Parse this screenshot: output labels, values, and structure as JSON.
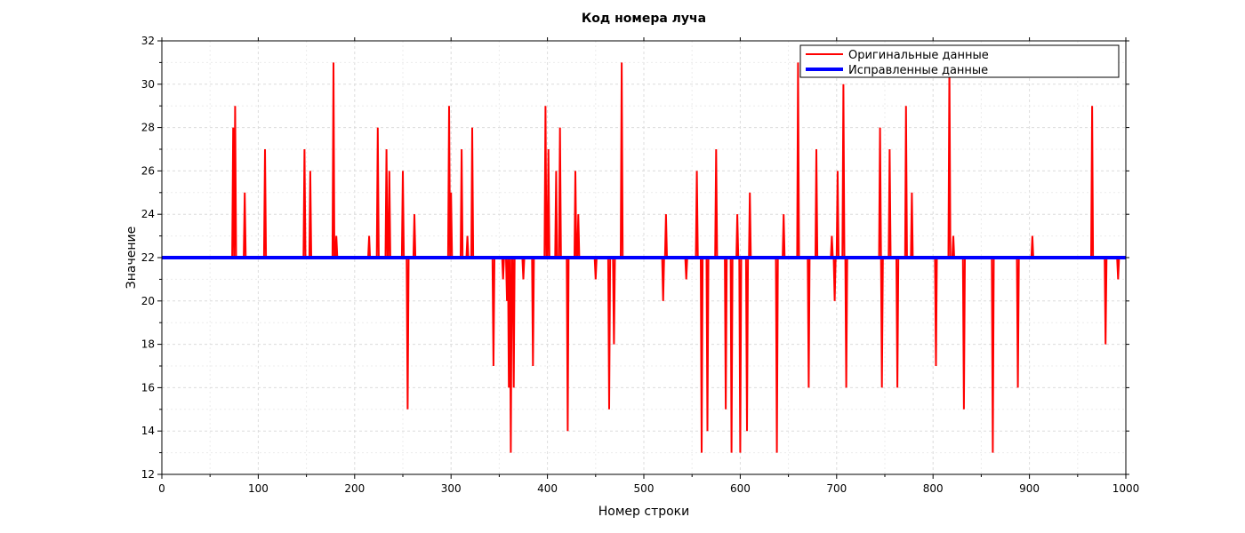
{
  "chart_data": {
    "type": "line",
    "title": "Код номера луча",
    "xlabel": "Номер строки",
    "ylabel": "Значение",
    "xlim": [
      0,
      1000
    ],
    "ylim": [
      12,
      32
    ],
    "xticks": [
      0,
      100,
      200,
      300,
      400,
      500,
      600,
      700,
      800,
      900,
      1000
    ],
    "yticks": [
      12,
      14,
      16,
      18,
      20,
      22,
      24,
      26,
      28,
      30,
      32
    ],
    "grid": true,
    "legend_position": "top-right",
    "series": [
      {
        "name": "Оригинальные данные",
        "color": "#ff0000",
        "baseline": 22,
        "spikes": [
          [
            74,
            28
          ],
          [
            76,
            29
          ],
          [
            86,
            25
          ],
          [
            107,
            27
          ],
          [
            148,
            27
          ],
          [
            154,
            26
          ],
          [
            178,
            31
          ],
          [
            181,
            23
          ],
          [
            215,
            23
          ],
          [
            224,
            28
          ],
          [
            233,
            27
          ],
          [
            236,
            26
          ],
          [
            250,
            26
          ],
          [
            255,
            15
          ],
          [
            262,
            24
          ],
          [
            298,
            29
          ],
          [
            300,
            25
          ],
          [
            311,
            27
          ],
          [
            317,
            23
          ],
          [
            322,
            28
          ],
          [
            344,
            17
          ],
          [
            354,
            21
          ],
          [
            358,
            20
          ],
          [
            360,
            16
          ],
          [
            362,
            13
          ],
          [
            365,
            16
          ],
          [
            375,
            21
          ],
          [
            385,
            17
          ],
          [
            398,
            29
          ],
          [
            401,
            27
          ],
          [
            409,
            26
          ],
          [
            413,
            28
          ],
          [
            421,
            14
          ],
          [
            429,
            26
          ],
          [
            432,
            24
          ],
          [
            450,
            21
          ],
          [
            464,
            15
          ],
          [
            469,
            18
          ],
          [
            477,
            31
          ],
          [
            520,
            20
          ],
          [
            523,
            24
          ],
          [
            544,
            21
          ],
          [
            555,
            26
          ],
          [
            560,
            13
          ],
          [
            566,
            14
          ],
          [
            575,
            27
          ],
          [
            585,
            15
          ],
          [
            591,
            13
          ],
          [
            597,
            24
          ],
          [
            600,
            13
          ],
          [
            607,
            14
          ],
          [
            610,
            25
          ],
          [
            638,
            13
          ],
          [
            645,
            24
          ],
          [
            660,
            31
          ],
          [
            671,
            16
          ],
          [
            679,
            27
          ],
          [
            695,
            23
          ],
          [
            698,
            20
          ],
          [
            701,
            26
          ],
          [
            707,
            30
          ],
          [
            710,
            16
          ],
          [
            745,
            28
          ],
          [
            747,
            16
          ],
          [
            755,
            27
          ],
          [
            763,
            16
          ],
          [
            772,
            29
          ],
          [
            778,
            25
          ],
          [
            803,
            17
          ],
          [
            817,
            31
          ],
          [
            821,
            23
          ],
          [
            832,
            15
          ],
          [
            862,
            13
          ],
          [
            888,
            16
          ],
          [
            903,
            23
          ],
          [
            965,
            29
          ],
          [
            979,
            18
          ],
          [
            992,
            21
          ]
        ]
      },
      {
        "name": "Исправленные данные",
        "color": "#0000ff",
        "constant": 22
      }
    ]
  }
}
